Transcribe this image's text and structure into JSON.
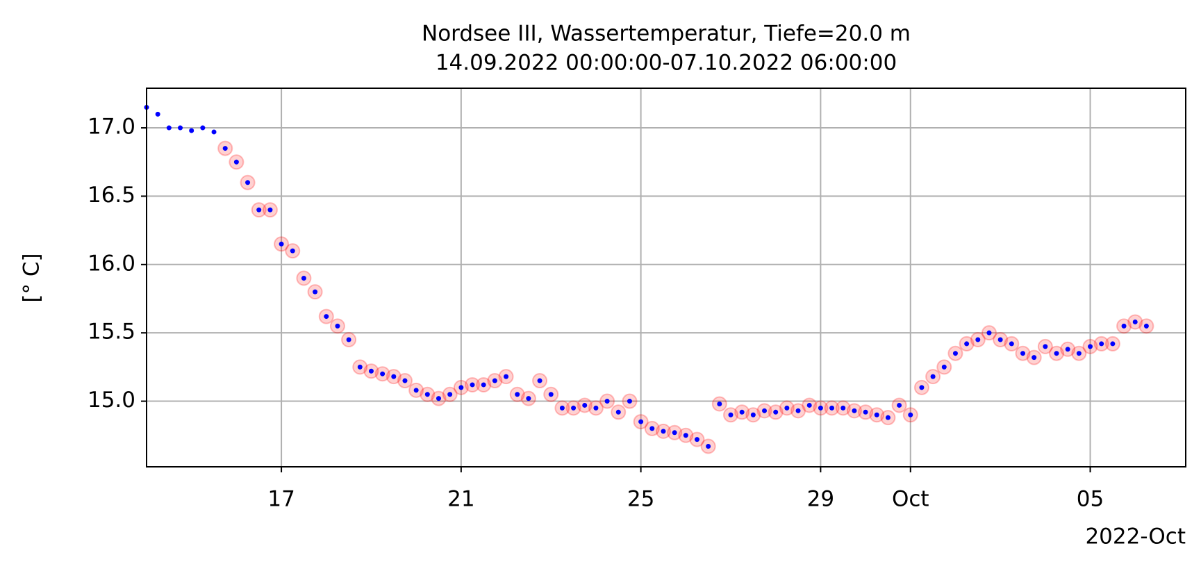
{
  "chart_data": {
    "type": "scatter",
    "title": "Nordsee III, Wassertemperatur, Tiefe=20.0 m",
    "subtitle": "14.09.2022 00:00:00-07.10.2022 06:00:00",
    "ylabel": "[° C]",
    "x_offset_label": "2022-Oct",
    "x": [
      "2022-09-14 00:00",
      "2022-09-14 06:00",
      "2022-09-14 12:00",
      "2022-09-14 18:00",
      "2022-09-15 00:00",
      "2022-09-15 06:00",
      "2022-09-15 12:00",
      "2022-09-15 18:00",
      "2022-09-16 00:00",
      "2022-09-16 06:00",
      "2022-09-16 12:00",
      "2022-09-16 18:00",
      "2022-09-17 00:00",
      "2022-09-17 06:00",
      "2022-09-17 12:00",
      "2022-09-17 18:00",
      "2022-09-18 00:00",
      "2022-09-18 06:00",
      "2022-09-18 12:00",
      "2022-09-18 18:00",
      "2022-09-19 00:00",
      "2022-09-19 06:00",
      "2022-09-19 12:00",
      "2022-09-19 18:00",
      "2022-09-20 00:00",
      "2022-09-20 06:00",
      "2022-09-20 12:00",
      "2022-09-20 18:00",
      "2022-09-21 00:00",
      "2022-09-21 06:00",
      "2022-09-21 12:00",
      "2022-09-21 18:00",
      "2022-09-22 00:00",
      "2022-09-22 06:00",
      "2022-09-22 12:00",
      "2022-09-22 18:00",
      "2022-09-23 00:00",
      "2022-09-23 06:00",
      "2022-09-23 12:00",
      "2022-09-23 18:00",
      "2022-09-24 00:00",
      "2022-09-24 06:00",
      "2022-09-24 12:00",
      "2022-09-24 18:00",
      "2022-09-25 00:00",
      "2022-09-25 06:00",
      "2022-09-25 12:00",
      "2022-09-25 18:00",
      "2022-09-26 00:00",
      "2022-09-26 06:00",
      "2022-09-26 12:00",
      "2022-09-26 18:00",
      "2022-09-27 00:00",
      "2022-09-27 06:00",
      "2022-09-27 12:00",
      "2022-09-27 18:00",
      "2022-09-28 00:00",
      "2022-09-28 06:00",
      "2022-09-28 12:00",
      "2022-09-28 18:00",
      "2022-09-29 00:00",
      "2022-09-29 06:00",
      "2022-09-29 12:00",
      "2022-09-29 18:00",
      "2022-09-30 00:00",
      "2022-09-30 06:00",
      "2022-09-30 12:00",
      "2022-09-30 18:00",
      "2022-10-01 00:00",
      "2022-10-01 06:00",
      "2022-10-01 12:00",
      "2022-10-01 18:00",
      "2022-10-02 00:00",
      "2022-10-02 06:00",
      "2022-10-02 12:00",
      "2022-10-02 18:00",
      "2022-10-03 00:00",
      "2022-10-03 06:00",
      "2022-10-03 12:00",
      "2022-10-03 18:00",
      "2022-10-04 00:00",
      "2022-10-04 06:00",
      "2022-10-04 12:00",
      "2022-10-04 18:00",
      "2022-10-05 00:00",
      "2022-10-05 06:00",
      "2022-10-05 12:00",
      "2022-10-05 18:00",
      "2022-10-06 00:00",
      "2022-10-06 06:00"
    ],
    "values": [
      17.15,
      17.1,
      17.0,
      17.0,
      16.98,
      17.0,
      16.97,
      16.85,
      16.75,
      16.6,
      16.4,
      16.4,
      16.15,
      16.1,
      15.9,
      15.8,
      15.62,
      15.55,
      15.45,
      15.25,
      15.22,
      15.2,
      15.18,
      15.15,
      15.08,
      15.05,
      15.02,
      15.05,
      15.1,
      15.12,
      15.12,
      15.15,
      15.18,
      15.05,
      15.02,
      15.15,
      15.05,
      14.95,
      14.95,
      14.97,
      14.95,
      15.0,
      14.92,
      15.0,
      14.85,
      14.8,
      14.78,
      14.77,
      14.75,
      14.72,
      14.67,
      14.98,
      14.9,
      14.92,
      14.9,
      14.93,
      14.92,
      14.95,
      14.93,
      14.97,
      14.95,
      14.95,
      14.95,
      14.93,
      14.92,
      14.9,
      14.88,
      14.97,
      14.9,
      15.1,
      15.18,
      15.25,
      15.35,
      15.42,
      15.45,
      15.5,
      15.45,
      15.42,
      15.35,
      15.32,
      15.4,
      15.35,
      15.38,
      15.35,
      15.4,
      15.42,
      15.42,
      15.55,
      15.58,
      15.55
    ],
    "flagged": [
      false,
      false,
      false,
      false,
      false,
      false,
      false,
      true,
      true,
      true,
      true,
      true,
      true,
      true,
      true,
      true,
      true,
      true,
      true,
      true,
      true,
      true,
      true,
      true,
      true,
      true,
      true,
      true,
      true,
      true,
      true,
      true,
      true,
      true,
      true,
      true,
      true,
      true,
      true,
      true,
      true,
      true,
      true,
      true,
      true,
      true,
      true,
      true,
      true,
      true,
      true,
      true,
      true,
      true,
      true,
      true,
      true,
      true,
      true,
      true,
      true,
      true,
      true,
      true,
      true,
      true,
      true,
      true,
      true,
      true,
      true,
      true,
      true,
      true,
      true,
      true,
      true,
      true,
      true,
      true,
      true,
      true,
      true,
      true,
      true,
      true,
      true,
      true,
      true,
      true
    ],
    "color": "#0000ff",
    "flag_color": "#ff0000",
    "xlim": [
      "2022-09-14 00:00",
      "2022-10-07 03:00"
    ],
    "xticks": [
      {
        "value": "2022-09-17 00:00",
        "label": "17"
      },
      {
        "value": "2022-09-21 00:00",
        "label": "21"
      },
      {
        "value": "2022-09-25 00:00",
        "label": "25"
      },
      {
        "value": "2022-09-29 00:00",
        "label": "29"
      },
      {
        "value": "2022-10-01 00:00",
        "label": "Oct"
      },
      {
        "value": "2022-10-05 00:00",
        "label": "05"
      }
    ],
    "ylim": [
      14.52,
      17.29
    ],
    "yticks": [
      {
        "value": 15,
        "label": "15.0"
      },
      15.5,
      {
        "value": 16,
        "label": "16.0"
      },
      16.5,
      {
        "value": 17,
        "label": "17.0"
      }
    ],
    "grid": true
  }
}
